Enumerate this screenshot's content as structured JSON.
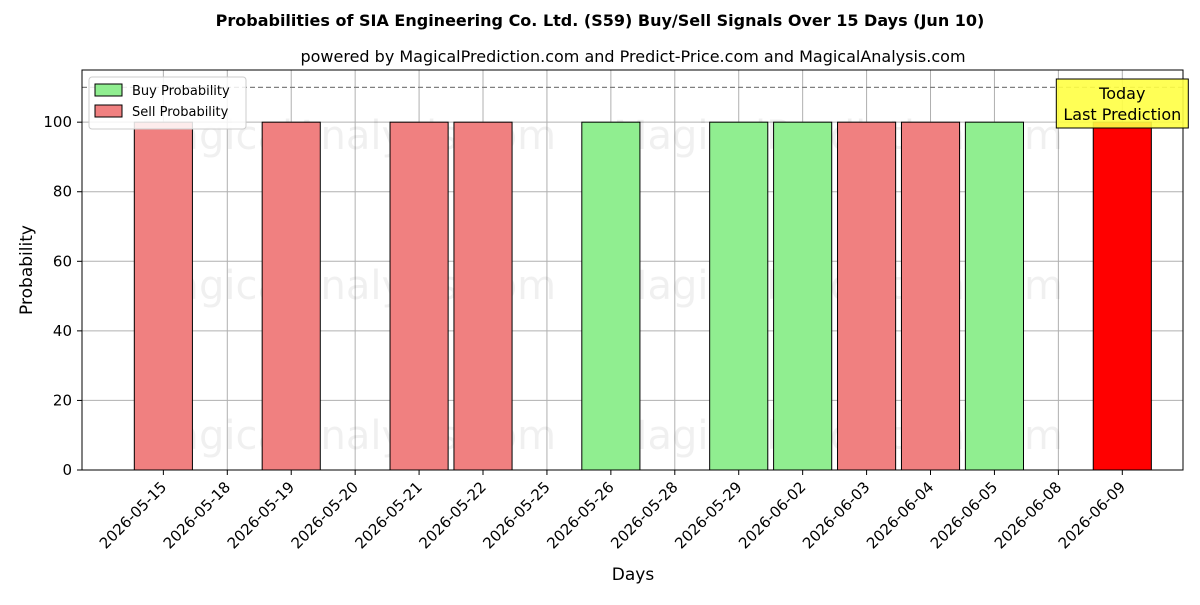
{
  "chart_data": {
    "type": "bar",
    "title": "Probabilities of SIA Engineering Co. Ltd. (S59) Buy/Sell Signals Over 15 Days (Jun 10)",
    "subtitle": "powered by MagicalPrediction.com and Predict-Price.com and MagicalAnalysis.com",
    "xlabel": "Days",
    "ylabel": "Probability",
    "ylim": [
      0,
      115
    ],
    "yticks": [
      0,
      20,
      40,
      60,
      80,
      100
    ],
    "reference_line": 110,
    "grid": true,
    "legend_position": "top-left",
    "categories": [
      "2026-05-15",
      "2026-05-18",
      "2026-05-19",
      "2026-05-20",
      "2026-05-21",
      "2026-05-22",
      "2026-05-25",
      "2026-05-26",
      "2026-05-28",
      "2026-05-29",
      "2026-06-02",
      "2026-06-03",
      "2026-06-04",
      "2026-06-05",
      "2026-06-08",
      "2026-06-09"
    ],
    "series": [
      {
        "name": "Buy Probability",
        "color": "#90ee90",
        "values": [
          0,
          0,
          0,
          0,
          0,
          0,
          0,
          100,
          0,
          100,
          100,
          0,
          0,
          100,
          0,
          0
        ]
      },
      {
        "name": "Sell Probability",
        "color": "#f08080",
        "values": [
          100,
          0,
          100,
          0,
          100,
          100,
          0,
          0,
          0,
          0,
          0,
          100,
          100,
          0,
          0,
          100
        ]
      }
    ],
    "highlight": {
      "category": "2026-06-09",
      "color": "#ff0000"
    },
    "annotation": {
      "line1": "Today",
      "line2": "Last Prediction",
      "color": "#ffff44"
    },
    "watermark": {
      "left": "MagicalAnalysis.com",
      "right": "MagicalPrediction.com"
    }
  }
}
